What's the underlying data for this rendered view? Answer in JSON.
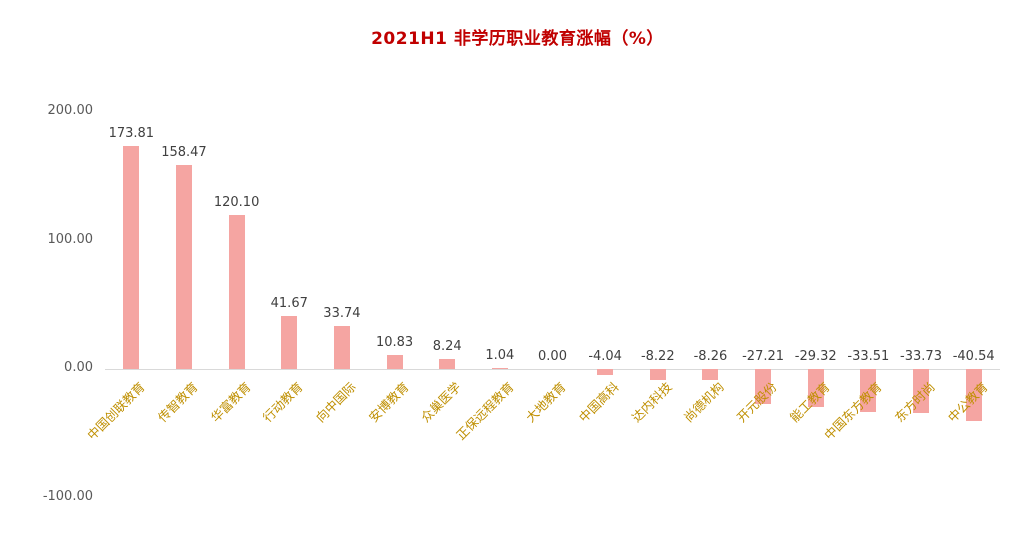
{
  "chart_data": {
    "type": "bar",
    "title": "2021H1 非学历职业教育涨幅（%）",
    "categories": [
      "中国创联教育",
      "传智教育",
      "华富教育",
      "行动教育",
      "向中国际",
      "安博教育",
      "众巢医学",
      "正保远程教育",
      "大地教育",
      "中国高科",
      "达内科技",
      "尚德机构",
      "开元股份",
      "能工教育",
      "中国东方教育",
      "东方时尚",
      "中公教育"
    ],
    "values": [
      173.81,
      158.47,
      120.1,
      41.67,
      33.74,
      10.83,
      8.24,
      1.04,
      0.0,
      -4.04,
      -8.22,
      -8.26,
      -27.21,
      -29.32,
      -33.51,
      -33.73,
      -40.54
    ],
    "xlabel": "",
    "ylabel": "",
    "ylim": [
      -100,
      200
    ],
    "yticks": [
      "200.00",
      "100.00",
      "0.00",
      "-100.00"
    ],
    "ytick_values": [
      200,
      100,
      0,
      -100
    ],
    "legend_position": "none",
    "grid": "zero-line-only",
    "colors": {
      "bar": "#f5a5a2",
      "title": "#c00000",
      "category_label": "#bf8f00",
      "value_label": "#404040",
      "axis_label": "#595959",
      "zero_line": "#d9d9d9",
      "background": "#ffffff"
    }
  }
}
